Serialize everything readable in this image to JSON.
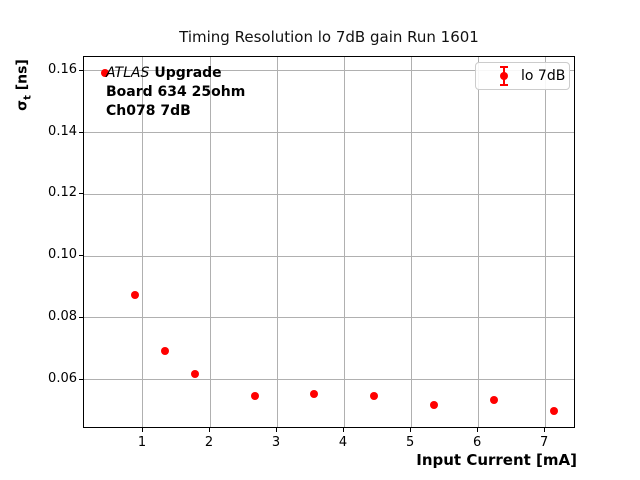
{
  "title": "Timing Resolution lo 7dB gain Run 1601",
  "labels": {
    "xlabel": "Input Current [mA]",
    "ylabel_sigma": "σ",
    "ylabel_sub": "t",
    "ylabel_unit": " [ns]"
  },
  "annotation": {
    "line1_italic": "ATLAS",
    "line1_bold": "Upgrade",
    "line2": "Board 634 25ohm",
    "line3": "Ch078 7dB"
  },
  "legend": {
    "label": "lo 7dB"
  },
  "colors": {
    "series": "#ff0000",
    "grid": "#b0b0b0",
    "frame": "#000000"
  },
  "chart_data": {
    "type": "scatter",
    "title": "Timing Resolution lo 7dB gain Run 1601",
    "xlabel": "Input Current [mA]",
    "ylabel": "σ_t [ns]",
    "series": [
      {
        "name": "lo 7dB",
        "color": "#ff0000",
        "marker": "circle-with-errorbars",
        "x": [
          0.45,
          0.89,
          1.34,
          1.79,
          2.68,
          3.57,
          4.46,
          5.36,
          6.25,
          7.14
        ],
        "y": [
          0.159,
          0.087,
          0.069,
          0.0615,
          0.0545,
          0.055,
          0.0545,
          0.0515,
          0.053,
          0.0495
        ]
      }
    ],
    "xlim": [
      0.12,
      7.46
    ],
    "ylim": [
      0.044,
      0.1645
    ],
    "xticks": [
      1,
      2,
      3,
      4,
      5,
      6,
      7
    ],
    "xticklabels": [
      "1",
      "2",
      "3",
      "4",
      "5",
      "6",
      "7"
    ],
    "yticks": [
      0.06,
      0.08,
      0.1,
      0.12,
      0.14,
      0.16
    ],
    "yticklabels": [
      "0.06",
      "0.08",
      "0.10",
      "0.12",
      "0.14",
      "0.16"
    ],
    "grid": true,
    "legend_position": "upper right",
    "annotation_text": "ATLAS Upgrade\nBoard 634 25ohm\nCh078 7dB"
  }
}
